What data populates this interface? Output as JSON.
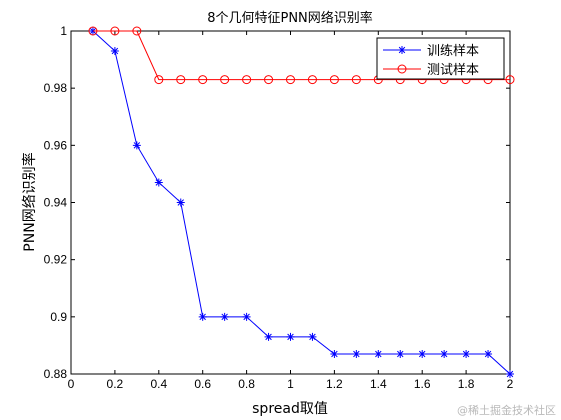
{
  "chart_data": {
    "type": "line",
    "title": "8个几何特征PNN网络识别率",
    "xlabel": "spread取值",
    "ylabel": "PNN网络识别率",
    "xlim": [
      0,
      2
    ],
    "ylim": [
      0.88,
      1
    ],
    "x_ticks": [
      0,
      0.2,
      0.4,
      0.6,
      0.8,
      1,
      1.2,
      1.4,
      1.6,
      1.8,
      2
    ],
    "x_tick_labels": [
      "0",
      "0.2",
      "0.4",
      "0.6",
      "0.8",
      "1",
      "1.2",
      "1.4",
      "1.6",
      "1.8",
      "2"
    ],
    "y_ticks": [
      0.88,
      0.9,
      0.92,
      0.94,
      0.96,
      0.98,
      1
    ],
    "y_tick_labels": [
      "0.88",
      "0.9",
      "0.92",
      "0.94",
      "0.96",
      "0.98",
      "1"
    ],
    "grid": false,
    "legend_position": "top-right",
    "x": [
      0.1,
      0.2,
      0.3,
      0.4,
      0.5,
      0.6,
      0.7,
      0.8,
      0.9,
      1.0,
      1.1,
      1.2,
      1.3,
      1.4,
      1.5,
      1.6,
      1.7,
      1.8,
      1.9,
      2.0
    ],
    "series": [
      {
        "name": "训练样本",
        "color": "#0000ff",
        "marker": "star",
        "values": [
          1,
          0.993,
          0.96,
          0.947,
          0.94,
          0.9,
          0.9,
          0.9,
          0.893,
          0.893,
          0.893,
          0.887,
          0.887,
          0.887,
          0.887,
          0.887,
          0.887,
          0.887,
          0.887,
          0.88
        ]
      },
      {
        "name": "测试样本",
        "color": "#ff0000",
        "marker": "circle",
        "values": [
          1,
          1,
          1,
          0.983,
          0.983,
          0.983,
          0.983,
          0.983,
          0.983,
          0.983,
          0.983,
          0.983,
          0.983,
          0.983,
          0.983,
          0.983,
          0.983,
          0.983,
          0.983,
          0.983
        ]
      }
    ]
  },
  "watermark": "@稀土掘金技术社区"
}
